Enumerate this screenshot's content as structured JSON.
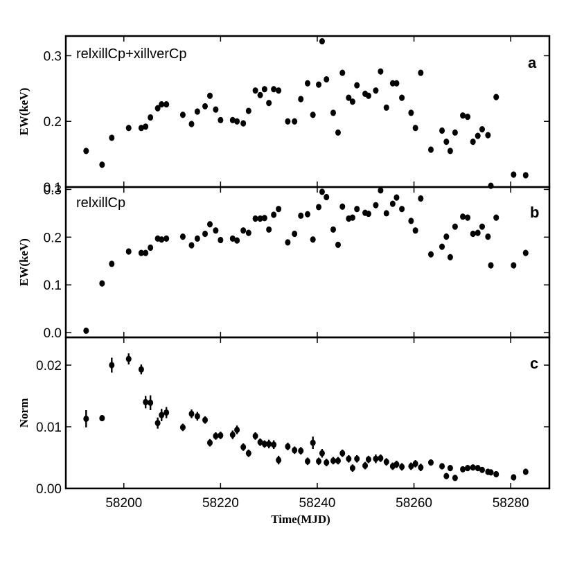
{
  "chart_data": {
    "type": "scatter",
    "xlabel": "Time(MJD)",
    "xlim": [
      58188,
      58288
    ],
    "xticks": [
      58200,
      58220,
      58240,
      58260,
      58280
    ],
    "panels": [
      {
        "id": "a",
        "letter": "a",
        "annotation": "relxillCp+xillverCp",
        "ylabel": "EW(keV)",
        "ylim": [
          0.1,
          0.33
        ],
        "yticks": [
          0.1,
          0.2,
          0.3
        ],
        "ytick_labels": [
          "0.1",
          "0.2",
          "0.3"
        ],
        "points": [
          [
            58192.2,
            0.155
          ],
          [
            58195.5,
            0.134
          ],
          [
            58197.5,
            0.175
          ],
          [
            58201.0,
            0.19
          ],
          [
            58203.6,
            0.19
          ],
          [
            58204.5,
            0.192
          ],
          [
            58205.5,
            0.206
          ],
          [
            58207.0,
            0.22
          ],
          [
            58207.8,
            0.226
          ],
          [
            58208.8,
            0.226
          ],
          [
            58212.2,
            0.21
          ],
          [
            58214.0,
            0.196
          ],
          [
            58215.2,
            0.215
          ],
          [
            58216.8,
            0.223
          ],
          [
            58217.8,
            0.239
          ],
          [
            58219.0,
            0.218
          ],
          [
            58220.0,
            0.202
          ],
          [
            58222.5,
            0.202
          ],
          [
            58223.4,
            0.2
          ],
          [
            58224.7,
            0.197
          ],
          [
            58225.8,
            0.216
          ],
          [
            58227.2,
            0.247
          ],
          [
            58228.2,
            0.24
          ],
          [
            58229.1,
            0.249
          ],
          [
            58230.0,
            0.228
          ],
          [
            58231.0,
            0.249
          ],
          [
            58232.0,
            0.247
          ],
          [
            58233.9,
            0.2
          ],
          [
            58235.3,
            0.2
          ],
          [
            58236.6,
            0.234
          ],
          [
            58238.0,
            0.258
          ],
          [
            58239.1,
            0.21
          ],
          [
            58240.3,
            0.256
          ],
          [
            58241.0,
            0.322
          ],
          [
            58241.9,
            0.264
          ],
          [
            58243.3,
            0.213
          ],
          [
            58244.3,
            0.183
          ],
          [
            58245.2,
            0.274
          ],
          [
            58246.5,
            0.236
          ],
          [
            58247.3,
            0.23
          ],
          [
            58248.2,
            0.255
          ],
          [
            58249.9,
            0.242
          ],
          [
            58250.6,
            0.239
          ],
          [
            58252.1,
            0.247
          ],
          [
            58253.1,
            0.276
          ],
          [
            58254.3,
            0.221
          ],
          [
            58255.6,
            0.258
          ],
          [
            58256.4,
            0.258
          ],
          [
            58257.5,
            0.236
          ],
          [
            58259.4,
            0.213
          ],
          [
            58260.3,
            0.19
          ],
          [
            58261.4,
            0.274
          ],
          [
            58263.5,
            0.157
          ],
          [
            58265.8,
            0.186
          ],
          [
            58266.7,
            0.169
          ],
          [
            58267.5,
            0.155
          ],
          [
            58268.5,
            0.183
          ],
          [
            58270.1,
            0.209
          ],
          [
            58271.1,
            0.207
          ],
          [
            58272.2,
            0.169
          ],
          [
            58273.2,
            0.178
          ],
          [
            58274.1,
            0.188
          ],
          [
            58275.3,
            0.179
          ],
          [
            58275.9,
            0.102
          ],
          [
            58277.0,
            0.237
          ],
          [
            58280.6,
            0.119
          ],
          [
            58283.1,
            0.118
          ]
        ]
      },
      {
        "id": "b",
        "letter": "b",
        "annotation": "relxillCp",
        "ylabel": "EW(keV)",
        "ylim": [
          -0.01,
          0.305
        ],
        "yticks": [
          0.0,
          0.1,
          0.2,
          0.3
        ],
        "ytick_labels": [
          "0.0",
          "0.1",
          "0.2",
          "0.3"
        ],
        "points": [
          [
            58192.2,
            0.004
          ],
          [
            58195.5,
            0.103
          ],
          [
            58197.5,
            0.144
          ],
          [
            58201.0,
            0.17
          ],
          [
            58203.6,
            0.167
          ],
          [
            58204.5,
            0.167
          ],
          [
            58205.5,
            0.178
          ],
          [
            58207.0,
            0.197
          ],
          [
            58207.8,
            0.195
          ],
          [
            58208.8,
            0.197
          ],
          [
            58212.2,
            0.201
          ],
          [
            58214.0,
            0.183
          ],
          [
            58215.2,
            0.197
          ],
          [
            58216.8,
            0.207
          ],
          [
            58217.8,
            0.227
          ],
          [
            58219.0,
            0.214
          ],
          [
            58220.0,
            0.194
          ],
          [
            58222.5,
            0.197
          ],
          [
            58223.4,
            0.193
          ],
          [
            58224.7,
            0.214
          ],
          [
            58225.8,
            0.209
          ],
          [
            58227.2,
            0.239
          ],
          [
            58228.2,
            0.239
          ],
          [
            58229.1,
            0.24
          ],
          [
            58230.0,
            0.216
          ],
          [
            58231.0,
            0.247
          ],
          [
            58232.0,
            0.259
          ],
          [
            58233.9,
            0.189
          ],
          [
            58235.3,
            0.207
          ],
          [
            58236.6,
            0.245
          ],
          [
            58238.0,
            0.248
          ],
          [
            58239.1,
            0.195
          ],
          [
            58240.3,
            0.263
          ],
          [
            58241.0,
            0.295
          ],
          [
            58241.9,
            0.284
          ],
          [
            58243.3,
            0.216
          ],
          [
            58244.3,
            0.184
          ],
          [
            58245.2,
            0.264
          ],
          [
            58246.5,
            0.239
          ],
          [
            58247.3,
            0.241
          ],
          [
            58248.2,
            0.259
          ],
          [
            58249.9,
            0.251
          ],
          [
            58250.6,
            0.249
          ],
          [
            58252.1,
            0.267
          ],
          [
            58253.1,
            0.298
          ],
          [
            58254.3,
            0.25
          ],
          [
            58255.6,
            0.27
          ],
          [
            58256.4,
            0.283
          ],
          [
            58257.5,
            0.259
          ],
          [
            58259.4,
            0.234
          ],
          [
            58260.3,
            0.214
          ],
          [
            58261.4,
            0.281
          ],
          [
            58263.5,
            0.164
          ],
          [
            58265.8,
            0.18
          ],
          [
            58266.7,
            0.201
          ],
          [
            58267.5,
            0.158
          ],
          [
            58268.5,
            0.222
          ],
          [
            58270.1,
            0.243
          ],
          [
            58271.1,
            0.241
          ],
          [
            58272.2,
            0.207
          ],
          [
            58273.2,
            0.209
          ],
          [
            58274.1,
            0.222
          ],
          [
            58275.3,
            0.201
          ],
          [
            58275.9,
            0.141
          ],
          [
            58277.0,
            0.241
          ],
          [
            58280.6,
            0.141
          ],
          [
            58283.1,
            0.167
          ]
        ]
      },
      {
        "id": "c",
        "letter": "c",
        "annotation": "",
        "ylabel": "Norm",
        "ylim": [
          0.0,
          0.0245
        ],
        "yticks": [
          0.0,
          0.01,
          0.02
        ],
        "ytick_labels": [
          "0.00",
          "0.01",
          "0.02"
        ],
        "points": [
          [
            58192.2,
            0.0113,
            0.0014
          ],
          [
            58195.5,
            0.0114,
            0.0005
          ],
          [
            58197.5,
            0.02,
            0.0012
          ],
          [
            58201.0,
            0.021,
            0.0009
          ],
          [
            58203.6,
            0.0193,
            0.0008
          ],
          [
            58204.5,
            0.014,
            0.001
          ],
          [
            58205.5,
            0.0139,
            0.0012
          ],
          [
            58207.0,
            0.0106,
            0.0009
          ],
          [
            58207.8,
            0.0119,
            0.001
          ],
          [
            58208.8,
            0.0123,
            0.0009
          ],
          [
            58212.2,
            0.0099,
            0.0006
          ],
          [
            58214.0,
            0.0121,
            0.0007
          ],
          [
            58215.2,
            0.0117,
            0.0007
          ],
          [
            58216.8,
            0.0111,
            0.0006
          ],
          [
            58217.8,
            0.0074,
            0.0006
          ],
          [
            58219.0,
            0.0085,
            0.0006
          ],
          [
            58220.0,
            0.0086,
            0.0006
          ],
          [
            58222.5,
            0.0087,
            0.0007
          ],
          [
            58223.4,
            0.0095,
            0.0007
          ],
          [
            58224.7,
            0.0067,
            0.0006
          ],
          [
            58225.8,
            0.0057,
            0.0006
          ],
          [
            58227.2,
            0.0085,
            0.0006
          ],
          [
            58228.2,
            0.0075,
            0.0006
          ],
          [
            58229.1,
            0.0072,
            0.0006
          ],
          [
            58230.0,
            0.0072,
            0.0007
          ],
          [
            58231.0,
            0.0071,
            0.0007
          ],
          [
            58232.0,
            0.0046,
            0.0007
          ],
          [
            58233.9,
            0.0068,
            0.0006
          ],
          [
            58235.3,
            0.0062,
            0.0006
          ],
          [
            58236.6,
            0.0061,
            0.0006
          ],
          [
            58238.0,
            0.0044,
            0.0006
          ],
          [
            58239.1,
            0.0074,
            0.001
          ],
          [
            58240.3,
            0.0044,
            0.0006
          ],
          [
            58241.0,
            0.0057,
            0.0007
          ],
          [
            58241.9,
            0.0042,
            0.0006
          ],
          [
            58243.3,
            0.0045,
            0.0006
          ],
          [
            58244.3,
            0.0045,
            0.0006
          ],
          [
            58245.2,
            0.0057,
            0.0006
          ],
          [
            58246.5,
            0.0048,
            0.0006
          ],
          [
            58247.3,
            0.0033,
            0.0006
          ],
          [
            58248.2,
            0.0048,
            0.0006
          ],
          [
            58249.9,
            0.0037,
            0.0006
          ],
          [
            58250.6,
            0.0047,
            0.0006
          ],
          [
            58252.1,
            0.0048,
            0.0007
          ],
          [
            58253.1,
            0.0049,
            0.0006
          ],
          [
            58254.3,
            0.0043,
            0.0006
          ],
          [
            58255.6,
            0.0036,
            0.0006
          ],
          [
            58256.4,
            0.0039,
            0.0006
          ],
          [
            58257.5,
            0.0035,
            0.0006
          ],
          [
            58259.4,
            0.0036,
            0.0006
          ],
          [
            58260.3,
            0.004,
            0.0006
          ],
          [
            58261.4,
            0.0034,
            0.0006
          ],
          [
            58263.5,
            0.0042,
            0.0004
          ],
          [
            58265.8,
            0.0036,
            0.0004
          ],
          [
            58266.7,
            0.002,
            0.0004
          ],
          [
            58267.5,
            0.0033,
            0.0004
          ],
          [
            58268.5,
            0.0017,
            0.0004
          ],
          [
            58270.1,
            0.0031,
            0.0004
          ],
          [
            58271.1,
            0.0033,
            0.0004
          ],
          [
            58272.2,
            0.0034,
            0.0004
          ],
          [
            58273.2,
            0.0033,
            0.0004
          ],
          [
            58274.1,
            0.003,
            0.0004
          ],
          [
            58275.3,
            0.0027,
            0.0004
          ],
          [
            58275.9,
            0.0026,
            0.0004
          ],
          [
            58277.0,
            0.0023,
            0.0004
          ],
          [
            58280.6,
            0.0018,
            0.0004
          ],
          [
            58283.1,
            0.0027,
            0.0004
          ]
        ]
      }
    ]
  }
}
